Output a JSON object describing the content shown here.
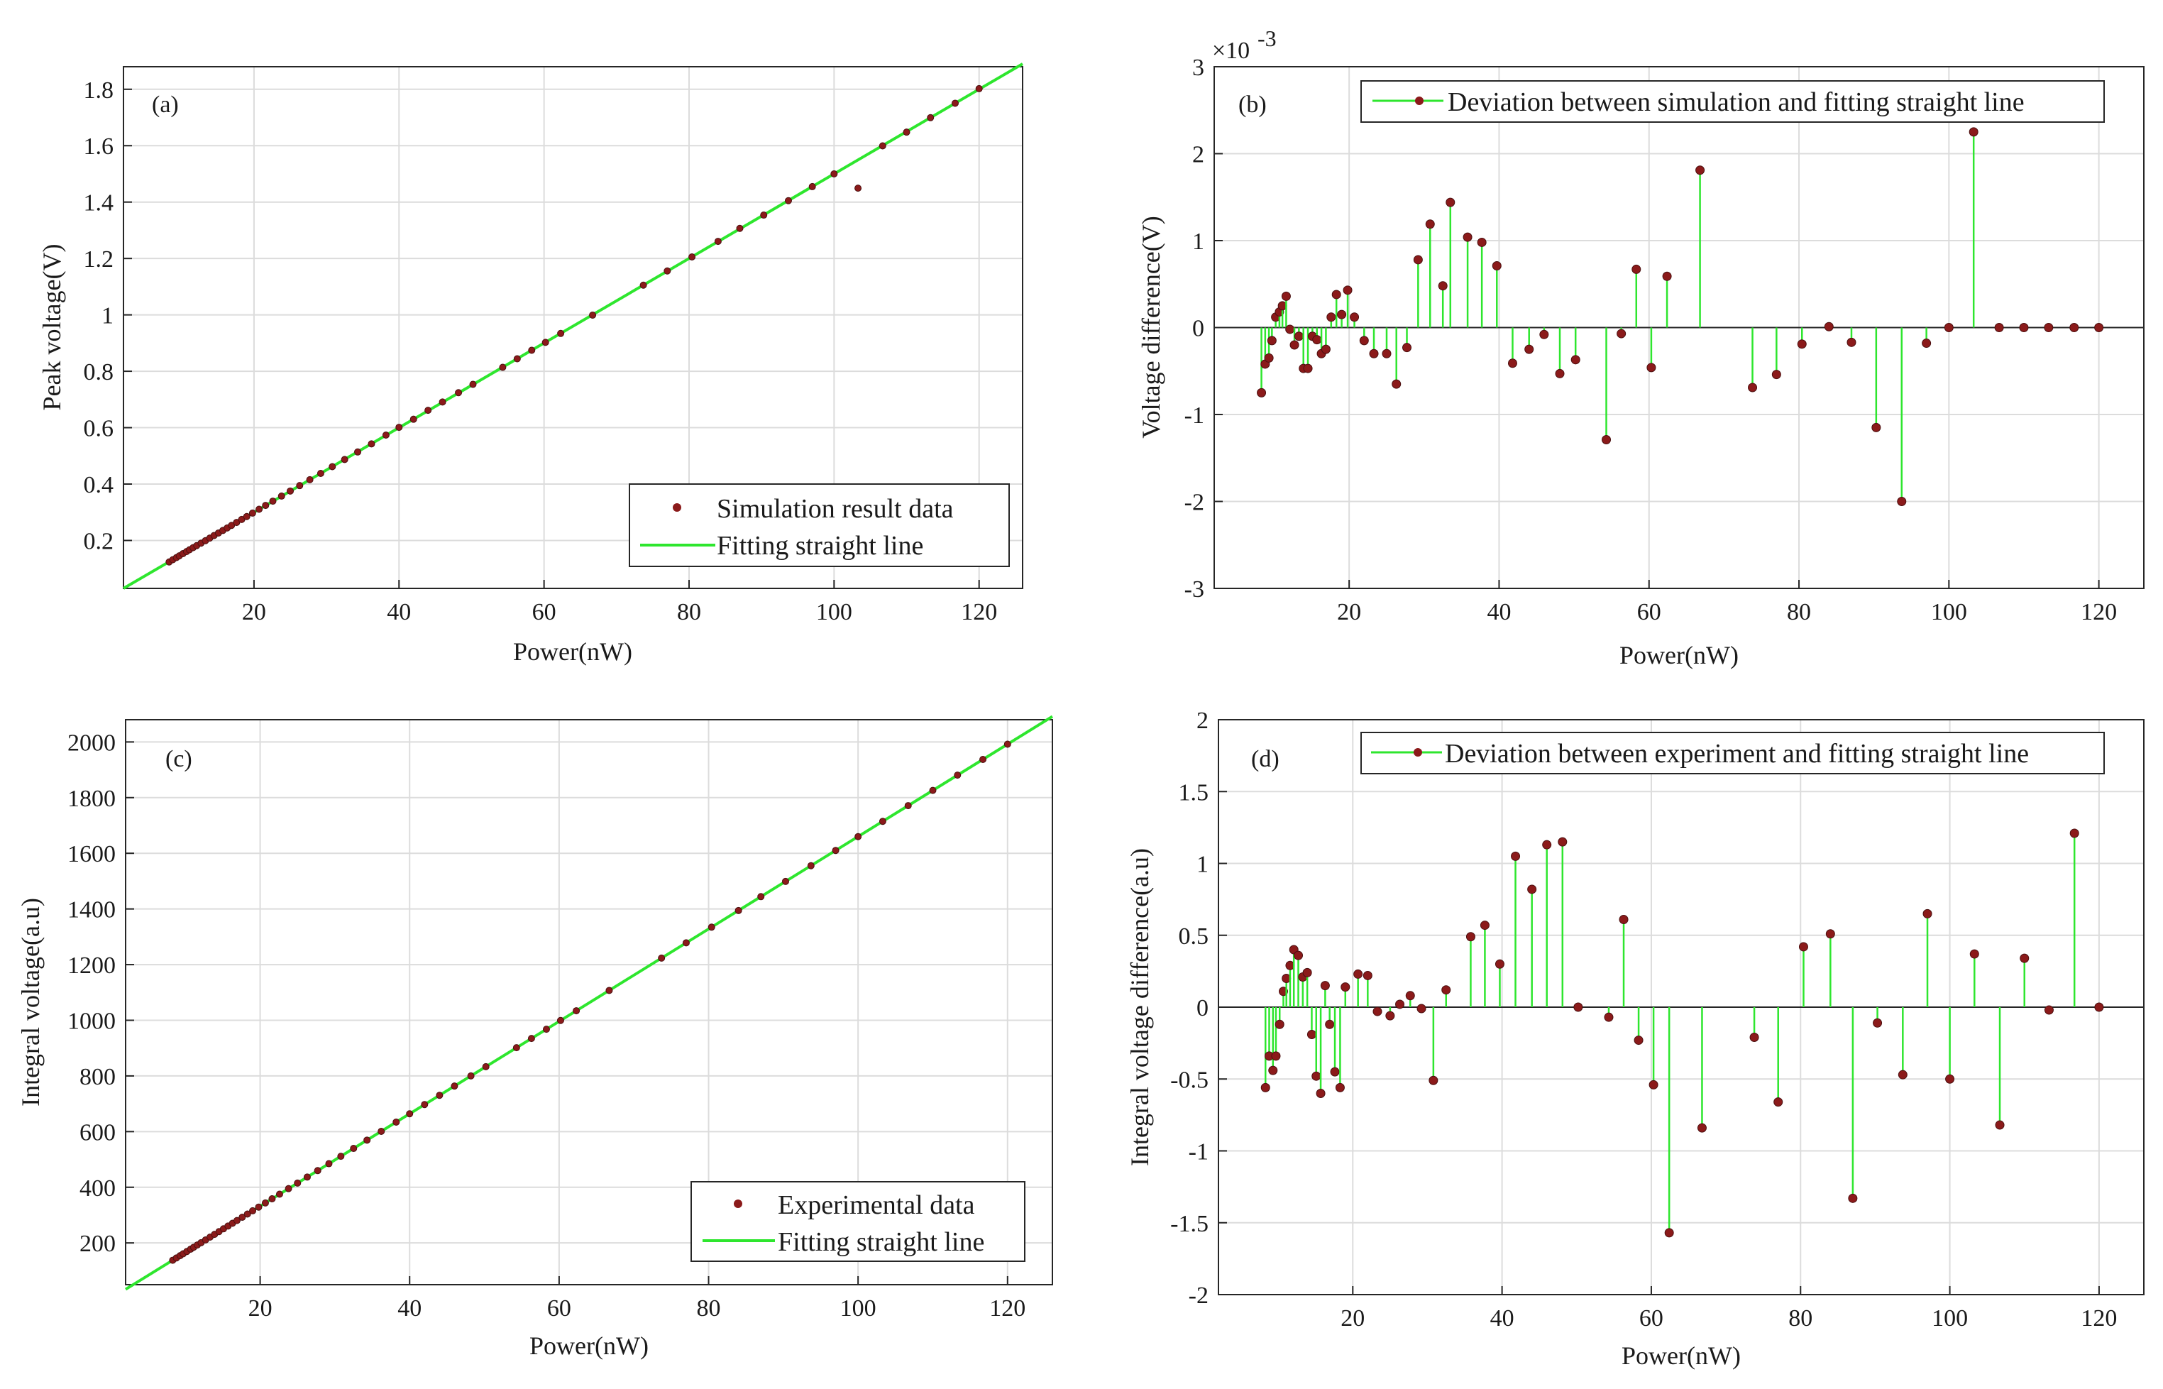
{
  "figure": {
    "panels": [
      "a",
      "b",
      "c",
      "d"
    ]
  },
  "colors": {
    "fit_line": "#2ee62e",
    "marker": "#8b1a1a",
    "marker_edge": "#4a1010",
    "axis": "#262626",
    "grid": "#dcdcdc"
  },
  "chart_data": [
    {
      "id": "a",
      "type": "scatter",
      "panel_label": "(a)",
      "xlabel": "Power(nW)",
      "ylabel": "Peak voltage(V)",
      "xlim": [
        2,
        126
      ],
      "ylim": [
        0.03,
        1.88
      ],
      "xticks": [
        20,
        40,
        60,
        80,
        100,
        120
      ],
      "xtick_labels": [
        "20",
        "40",
        "60",
        "80",
        "100",
        "120"
      ],
      "yticks": [
        0.2,
        0.4,
        0.6,
        0.8,
        1.0,
        1.2,
        1.4,
        1.6,
        1.8
      ],
      "ytick_labels": [
        "0.2",
        "0.4",
        "0.6",
        "0.8",
        "1",
        "1.2",
        "1.4",
        "1.6",
        "1.8"
      ],
      "legend_position": "bottom-right",
      "legend": [
        "Simulation result data",
        "Fitting straight line"
      ],
      "fit": {
        "slope": 0.015,
        "intercept": 0.0
      },
      "x": [
        8.3,
        8.8,
        9.3,
        9.7,
        10.2,
        10.7,
        11.1,
        11.6,
        12.1,
        12.7,
        13.3,
        13.9,
        14.5,
        15.1,
        15.7,
        16.3,
        16.9,
        17.6,
        18.3,
        19.0,
        19.8,
        20.7,
        21.6,
        22.6,
        23.8,
        25.0,
        26.3,
        27.7,
        29.2,
        30.8,
        32.5,
        34.3,
        36.2,
        38.2,
        40.0,
        42.0,
        44.0,
        46.0,
        48.2,
        50.2,
        54.3,
        56.3,
        58.3,
        60.2,
        62.3,
        66.7,
        73.7,
        77.0,
        80.4,
        84.0,
        87.0,
        90.3,
        93.7,
        97.0,
        100.0,
        103.3,
        106.7,
        110.0,
        113.3,
        116.7,
        120.0
      ],
      "y": [
        0.1238,
        0.1316,
        0.1392,
        0.1454,
        0.1532,
        0.1606,
        0.1668,
        0.1744,
        0.1817,
        0.1905,
        0.1992,
        0.2084,
        0.2176,
        0.2264,
        0.2353,
        0.2442,
        0.2534,
        0.2639,
        0.2745,
        0.2848,
        0.297,
        0.3106,
        0.3243,
        0.3394,
        0.3574,
        0.3753,
        0.3945,
        0.4154,
        0.4378,
        0.4617,
        0.487,
        0.5138,
        0.5424,
        0.5737,
        0.6012,
        0.6299,
        0.6615,
        0.691,
        0.724,
        0.7537,
        0.8141,
        0.8442,
        0.8744,
        0.9025,
        0.9341,
        0.9992,
        1.1054,
        1.1557,
        1.2055,
        1.2606,
        1.3068,
        1.3538,
        1.4049,
        1.4548,
        1.5,
        1.4493,
        1.5994,
        1.648,
        1.6993,
        1.7505,
        1.8022
      ]
    },
    {
      "id": "b",
      "type": "stem",
      "panel_label": "(b)",
      "xlabel": "Power(nW)",
      "ylabel": "Voltage difference(V)",
      "exponent_label": "×10",
      "exponent_power": "-3",
      "xlim": [
        2,
        126
      ],
      "ylim": [
        -3,
        3
      ],
      "xticks": [
        20,
        40,
        60,
        80,
        100,
        120
      ],
      "xtick_labels": [
        "20",
        "40",
        "60",
        "80",
        "100",
        "120"
      ],
      "yticks": [
        -3,
        -2,
        -1,
        0,
        1,
        2,
        3
      ],
      "ytick_labels": [
        "-3",
        "-2",
        "-1",
        "0",
        "1",
        "2",
        "3"
      ],
      "legend_position": "top-right",
      "legend": [
        "Deviation between simulation and fitting straight line"
      ],
      "x": [
        8.3,
        8.8,
        9.3,
        9.7,
        10.2,
        10.7,
        11.1,
        11.6,
        12.1,
        12.7,
        13.3,
        13.9,
        14.5,
        15.1,
        15.7,
        16.3,
        16.9,
        17.6,
        18.3,
        19.0,
        19.8,
        20.7,
        22.0,
        23.3,
        25.0,
        26.3,
        27.7,
        29.2,
        30.8,
        32.5,
        33.5,
        35.8,
        37.7,
        39.7,
        41.8,
        44.0,
        46.0,
        48.1,
        50.2,
        54.3,
        56.3,
        58.3,
        60.3,
        62.4,
        66.8,
        73.8,
        77.0,
        80.4,
        84.0,
        87.0,
        90.3,
        93.7,
        97.0,
        100.0,
        103.3,
        106.7,
        110.0,
        113.3,
        116.7,
        120.0
      ],
      "y": [
        -0.75,
        -0.42,
        -0.35,
        -0.15,
        0.12,
        0.18,
        0.25,
        0.36,
        -0.02,
        -0.2,
        -0.1,
        -0.47,
        -0.47,
        -0.1,
        -0.14,
        -0.3,
        -0.25,
        0.12,
        0.38,
        0.15,
        0.43,
        0.12,
        -0.15,
        -0.3,
        -0.3,
        -0.65,
        -0.23,
        0.78,
        1.19,
        0.48,
        1.44,
        1.04,
        0.98,
        0.71,
        -0.41,
        -0.25,
        -0.08,
        -0.53,
        -0.37,
        -1.29,
        -0.07,
        0.67,
        -0.46,
        0.59,
        1.81,
        -0.69,
        -0.54,
        -0.19,
        0.01,
        -0.17,
        -1.15,
        -2.0,
        -0.18,
        0.0,
        2.25,
        0.0,
        0.0,
        0.0,
        0.0,
        0.0
      ]
    },
    {
      "id": "c",
      "type": "scatter",
      "panel_label": "(c)",
      "xlabel": "Power(nW)",
      "ylabel": "Integral voltage(a.u)",
      "xlim": [
        2,
        126
      ],
      "ylim": [
        50,
        2080
      ],
      "xticks": [
        20,
        40,
        60,
        80,
        100,
        120
      ],
      "xtick_labels": [
        "20",
        "40",
        "60",
        "80",
        "100",
        "120"
      ],
      "yticks": [
        200,
        400,
        600,
        800,
        1000,
        1200,
        1400,
        1600,
        1800,
        2000
      ],
      "ytick_labels": [
        "200",
        "400",
        "600",
        "800",
        "1000",
        "1200",
        "1400",
        "1600",
        "1800",
        "2000"
      ],
      "legend_position": "bottom-right",
      "legend": [
        "Experimental data",
        "Fitting straight line"
      ],
      "fit": {
        "slope": 16.6,
        "intercept": 0.0
      },
      "x": [
        8.3,
        8.8,
        9.3,
        9.7,
        10.2,
        10.7,
        11.1,
        11.6,
        12.1,
        12.7,
        13.3,
        13.9,
        14.5,
        15.1,
        15.7,
        16.3,
        16.9,
        17.6,
        18.3,
        19.0,
        19.8,
        20.7,
        21.6,
        22.6,
        23.8,
        25.0,
        26.3,
        27.7,
        29.2,
        30.8,
        32.5,
        34.3,
        36.2,
        38.2,
        40.0,
        42.0,
        44.0,
        46.0,
        48.2,
        50.2,
        54.3,
        56.3,
        58.3,
        60.2,
        62.3,
        66.7,
        73.7,
        77.0,
        80.4,
        84.0,
        87.0,
        90.3,
        93.7,
        97.0,
        100.0,
        103.3,
        106.7,
        110.0,
        113.3,
        116.7,
        120.0
      ],
      "y": [
        137.8,
        146.1,
        154.4,
        161.0,
        169.3,
        177.6,
        184.3,
        192.6,
        200.9,
        210.8,
        220.8,
        230.7,
        240.7,
        250.7,
        260.6,
        270.6,
        280.5,
        292.2,
        303.8,
        315.4,
        328.7,
        343.6,
        358.6,
        375.2,
        395.1,
        415.0,
        436.6,
        459.8,
        484.7,
        511.3,
        539.5,
        569.4,
        600.9,
        634.1,
        664.0,
        697.2,
        730.4,
        763.6,
        800.1,
        833.3,
        901.4,
        934.6,
        967.8,
        999.3,
        1034.2,
        1107.2,
        1223.4,
        1278.2,
        1334.6,
        1394.4,
        1444.2,
        1499.0,
        1555.4,
        1610.2,
        1660.0,
        1714.8,
        1771.2,
        1826.0,
        1880.8,
        1937.2,
        1992.0
      ]
    },
    {
      "id": "d",
      "type": "stem",
      "panel_label": "(d)",
      "xlabel": "Power(nW)",
      "ylabel": "Integral voltage difference(a.u)",
      "xlim": [
        2,
        126
      ],
      "ylim": [
        -2,
        2
      ],
      "xticks": [
        20,
        40,
        60,
        80,
        100,
        120
      ],
      "xtick_labels": [
        "20",
        "40",
        "60",
        "80",
        "100",
        "120"
      ],
      "yticks": [
        -2,
        -1.5,
        -1,
        -0.5,
        0,
        0.5,
        1,
        1.5,
        2
      ],
      "ytick_labels": [
        "-2",
        "-1.5",
        "-1",
        "-0.5",
        "0",
        "0.5",
        "1",
        "1.5",
        "2"
      ],
      "legend_position": "top-right",
      "legend": [
        "Deviation between experiment and fitting straight line"
      ],
      "x": [
        8.3,
        8.8,
        9.3,
        9.7,
        10.2,
        10.7,
        11.1,
        11.6,
        12.1,
        12.7,
        13.3,
        13.9,
        14.5,
        15.1,
        15.7,
        16.3,
        16.9,
        17.6,
        18.3,
        19.0,
        20.7,
        22.0,
        23.3,
        25.0,
        26.3,
        27.7,
        29.2,
        30.8,
        32.5,
        35.8,
        37.7,
        39.7,
        41.8,
        44.0,
        46.0,
        48.1,
        50.2,
        54.3,
        56.3,
        58.3,
        60.3,
        62.4,
        66.8,
        73.8,
        77.0,
        80.4,
        84.0,
        87.0,
        90.3,
        93.7,
        97.0,
        100.0,
        103.3,
        106.7,
        110.0,
        113.3,
        116.7,
        120.0
      ],
      "y": [
        -0.56,
        -0.34,
        -0.44,
        -0.34,
        -0.12,
        0.11,
        0.2,
        0.29,
        0.4,
        0.36,
        0.21,
        0.24,
        -0.19,
        -0.48,
        -0.6,
        0.15,
        -0.12,
        -0.45,
        -0.56,
        0.14,
        0.23,
        0.22,
        -0.03,
        -0.06,
        0.02,
        0.08,
        -0.01,
        -0.51,
        0.12,
        0.49,
        0.57,
        0.3,
        1.05,
        0.82,
        1.13,
        1.15,
        0.0,
        -0.07,
        0.61,
        -0.23,
        -0.54,
        -1.57,
        -0.84,
        -0.21,
        -0.66,
        0.42,
        0.51,
        -1.33,
        -0.11,
        -0.47,
        0.65,
        -0.5,
        0.37,
        -0.82,
        0.34,
        -0.02,
        1.21,
        0.0
      ]
    }
  ]
}
